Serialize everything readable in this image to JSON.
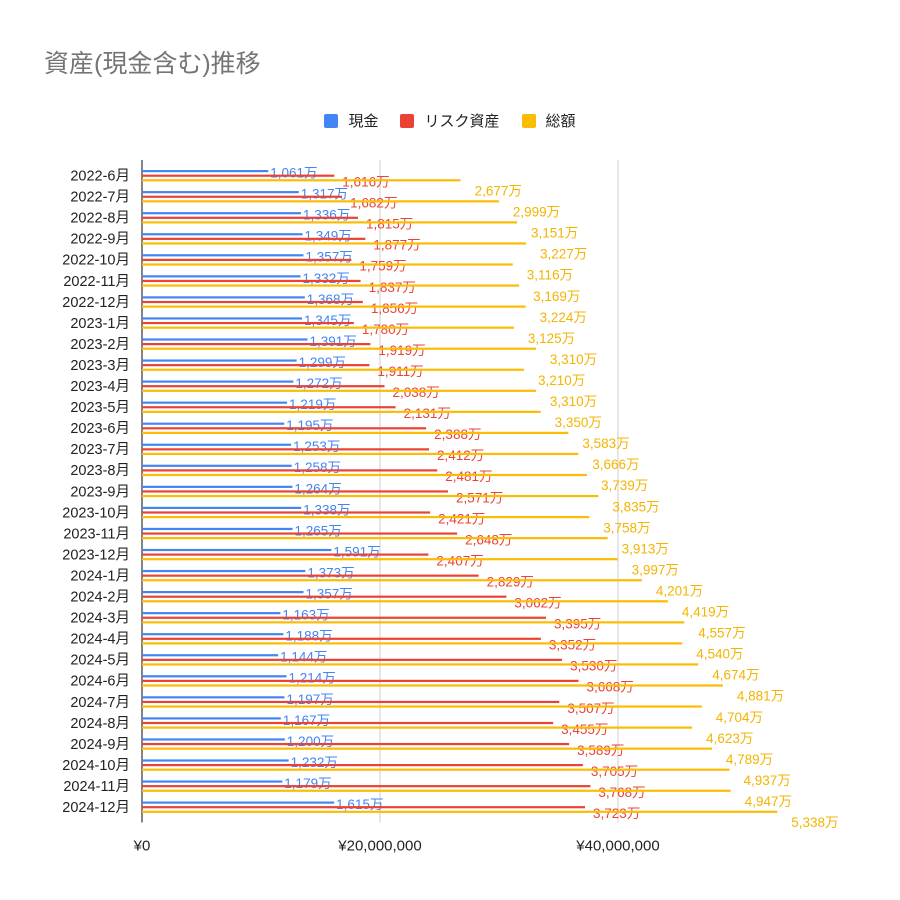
{
  "chart_data": {
    "type": "bar",
    "orientation": "horizontal",
    "title": "資産(現金含む)推移",
    "legend_position": "top-center",
    "series_names": [
      "現金",
      "リスク資産",
      "総額"
    ],
    "colors": [
      "#4285f4",
      "#ea4335",
      "#fbbc04"
    ],
    "data_label_suffix": "万",
    "categories": [
      "2022-6月",
      "2022-7月",
      "2022-8月",
      "2022-9月",
      "2022-10月",
      "2022-11月",
      "2022-12月",
      "2023-1月",
      "2023-2月",
      "2023-3月",
      "2023-4月",
      "2023-5月",
      "2023-6月",
      "2023-7月",
      "2023-8月",
      "2023-9月",
      "2023-10月",
      "2023-11月",
      "2023-12月",
      "2024-1月",
      "2024-2月",
      "2024-3月",
      "2024-4月",
      "2024-5月",
      "2024-6月",
      "2024-7月",
      "2024-8月",
      "2024-9月",
      "2024-10月",
      "2024-11月",
      "2024-12月"
    ],
    "series": [
      {
        "name": "現金",
        "values": [
          1061,
          1317,
          1336,
          1349,
          1357,
          1332,
          1368,
          1345,
          1391,
          1299,
          1272,
          1219,
          1195,
          1253,
          1258,
          1264,
          1338,
          1265,
          1591,
          1373,
          1357,
          1163,
          1188,
          1144,
          1214,
          1197,
          1167,
          1200,
          1232,
          1179,
          1615
        ]
      },
      {
        "name": "リスク資産",
        "values": [
          1616,
          1682,
          1815,
          1877,
          1759,
          1837,
          1856,
          1780,
          1919,
          1911,
          2038,
          2131,
          2388,
          2412,
          2481,
          2571,
          2421,
          2648,
          2407,
          2829,
          3062,
          3395,
          3352,
          3530,
          3668,
          3507,
          3455,
          3589,
          3705,
          3768,
          3723
        ]
      },
      {
        "name": "総額",
        "values": [
          2677,
          2999,
          3151,
          3227,
          3116,
          3169,
          3224,
          3125,
          3310,
          3210,
          3310,
          3350,
          3583,
          3666,
          3739,
          3835,
          3758,
          3913,
          3997,
          4201,
          4419,
          4557,
          4540,
          4674,
          4881,
          4704,
          4623,
          4789,
          4937,
          4947,
          5338
        ]
      }
    ],
    "xlim": [
      0,
      60000000
    ],
    "value_scale": 10000,
    "x_ticks": [
      0,
      20000000,
      40000000
    ],
    "x_tick_labels": [
      "¥0",
      "¥20,000,000",
      "¥40,000,000"
    ],
    "xlabel": "",
    "ylabel": "",
    "grid": true
  }
}
